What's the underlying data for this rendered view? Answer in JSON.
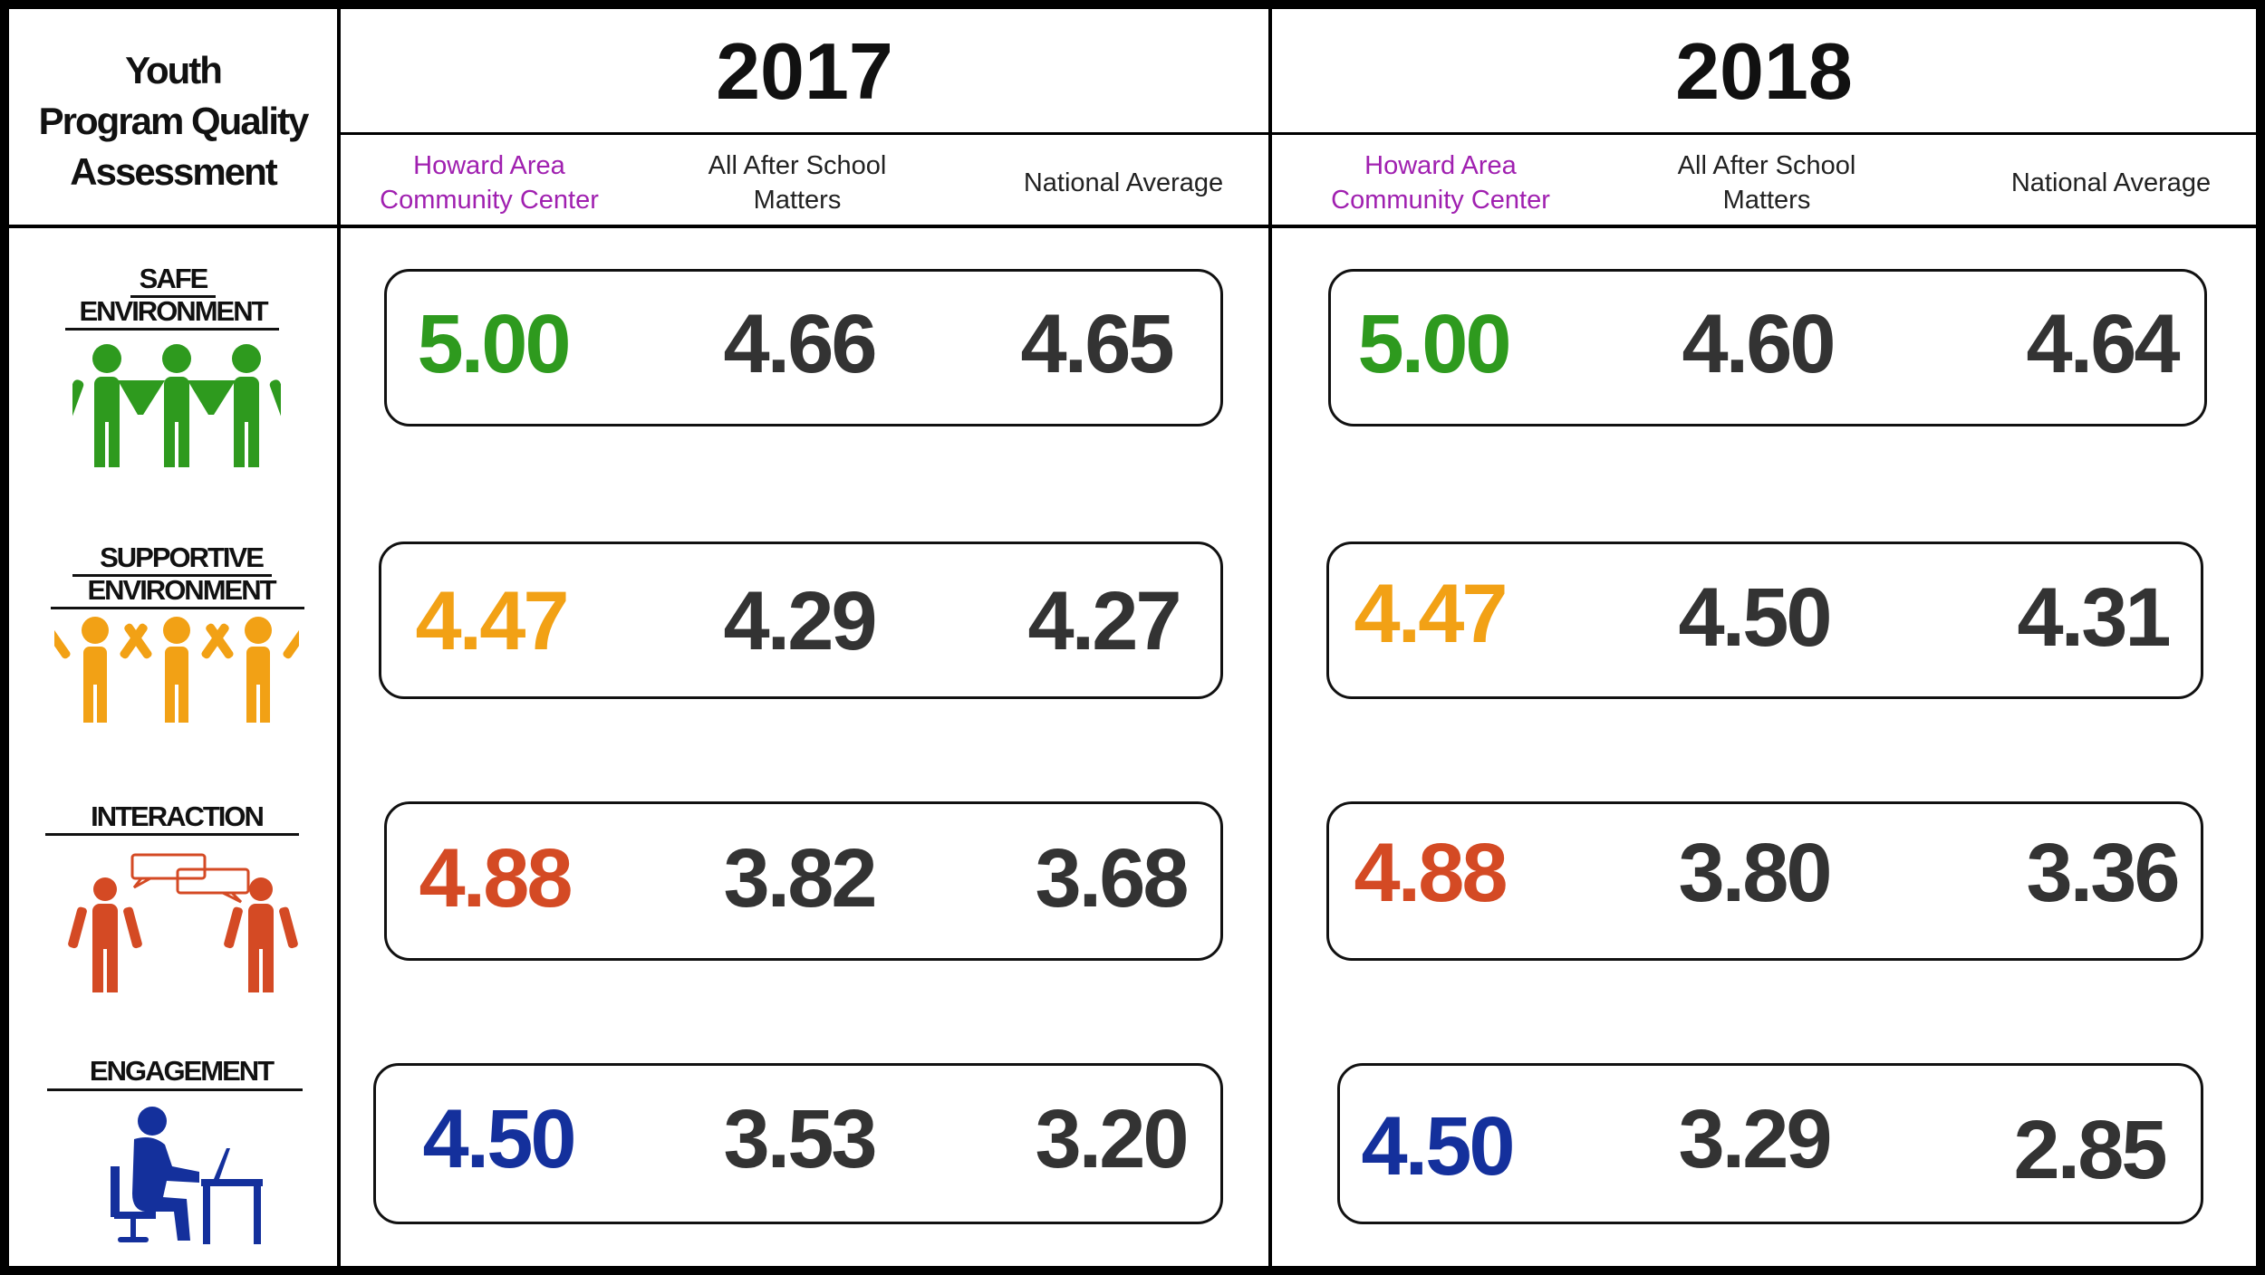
{
  "header": {
    "title_lines": [
      "Youth",
      "Program Quality",
      "Assessment"
    ],
    "years": [
      {
        "year": "2017",
        "columns": [
          {
            "lines": [
              "Howard Area",
              "Community Center"
            ],
            "accent": true
          },
          {
            "lines": [
              "All After School",
              "Matters"
            ],
            "accent": false
          },
          {
            "lines": [
              "National Average"
            ],
            "accent": false
          }
        ]
      },
      {
        "year": "2018",
        "columns": [
          {
            "lines": [
              "Howard Area",
              "Community Center"
            ],
            "accent": true
          },
          {
            "lines": [
              "All After School",
              "Matters"
            ],
            "accent": false
          },
          {
            "lines": [
              "National Average"
            ],
            "accent": false
          }
        ]
      }
    ]
  },
  "colors": {
    "hac_header": "#a020b0",
    "safe": "#2e9a1e",
    "supportive": "#f2a115",
    "interaction": "#d44a24",
    "engagement": "#14309c",
    "value": "#333333"
  },
  "categories": [
    {
      "lines": [
        "SAFE",
        "ENVIRONMENT"
      ],
      "icon": "three-people-holding-hands-icon",
      "color_key": "safe",
      "y2017": [
        "5.00",
        "4.66",
        "4.65"
      ],
      "y2018": [
        "5.00",
        "4.60",
        "4.64"
      ]
    },
    {
      "lines": [
        "SUPPORTIVE",
        "ENVIRONMENT"
      ],
      "icon": "three-people-arms-raised-icon",
      "color_key": "supportive",
      "y2017": [
        "4.47",
        "4.29",
        "4.27"
      ],
      "y2018": [
        "4.47",
        "4.50",
        "4.31"
      ]
    },
    {
      "lines": [
        "INTERACTION"
      ],
      "icon": "two-people-talking-icon",
      "color_key": "interaction",
      "y2017": [
        "4.88",
        "3.82",
        "3.68"
      ],
      "y2018": [
        "4.88",
        "3.80",
        "3.36"
      ]
    },
    {
      "lines": [
        "ENGAGEMENT"
      ],
      "icon": "person-at-desk-computer-icon",
      "color_key": "engagement",
      "y2017": [
        "4.50",
        "3.53",
        "3.20"
      ],
      "y2018": [
        "4.50",
        "3.29",
        "2.85"
      ]
    }
  ]
}
